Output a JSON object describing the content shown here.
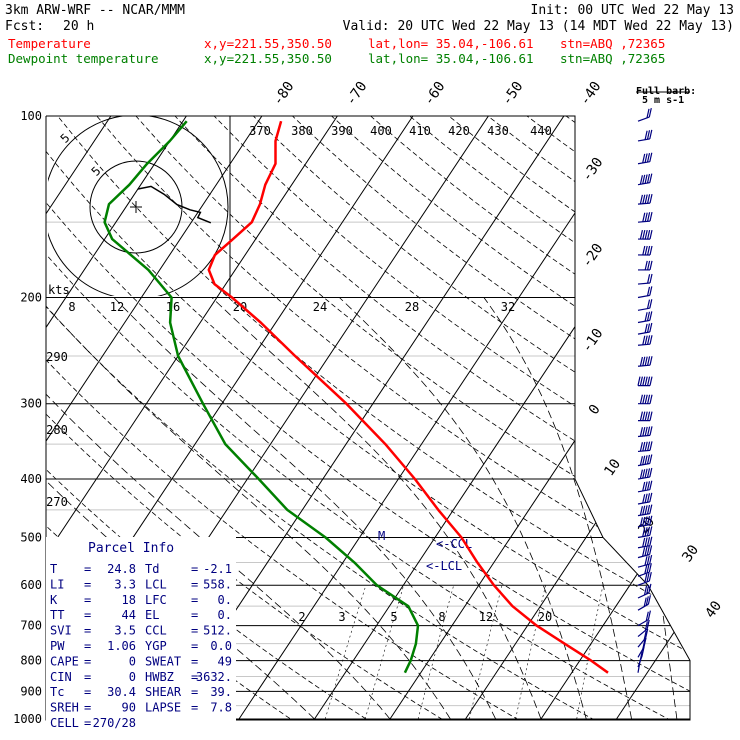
{
  "header": {
    "model": "3km ARW-WRF -- NCAR/MMM",
    "init": "Init: 00 UTC Wed 22 May 13",
    "fcst_label": "Fcst:",
    "fcst_hours": "20 h",
    "valid": "Valid: 20 UTC Wed 22 May 13 (14 MDT Wed 22 May 13)",
    "line_temp": {
      "name": "Temperature",
      "xy": "x,y=221.55,350.50",
      "latlon": "lat,lon= 35.04,-106.61",
      "stn": "stn=ABQ ,72365"
    },
    "line_dew": {
      "name": "Dewpoint temperature",
      "xy": "x,y=221.55,350.50",
      "latlon": "lat,lon= 35.04,-106.61",
      "stn": "stn=ABQ ,72365"
    }
  },
  "colors": {
    "temperature": "#ff0000",
    "dewpoint": "#008000",
    "axes": "#000000",
    "barbs": "#000080",
    "legend_text": "#000080"
  },
  "barb_legend": {
    "title": "Full barb:",
    "value": "5 m s-1"
  },
  "hodograph": {
    "units": "kts",
    "ring_labels": [
      "5",
      "5"
    ],
    "trace": [
      [
        0,
        0
      ],
      [
        -5,
        1
      ],
      [
        -10,
        -2
      ],
      [
        -15,
        -6
      ],
      [
        -20,
        -8
      ],
      [
        -24,
        -9
      ],
      [
        -23,
        -11
      ],
      [
        -28,
        -13
      ]
    ]
  },
  "indices": {
    "title": "Parcel Info",
    "rows": [
      [
        [
          "T",
          "=",
          "24.8"
        ],
        [
          "Td",
          "=",
          "-2.1"
        ]
      ],
      [
        [
          "LI",
          "=",
          "3.3"
        ],
        [
          "LCL",
          "=",
          "558."
        ]
      ],
      [
        [
          "K",
          "=",
          "18"
        ],
        [
          "LFC",
          "=",
          "0."
        ]
      ],
      [
        [
          "TT",
          "=",
          "44"
        ],
        [
          "EL",
          "=",
          "0."
        ]
      ],
      [
        [
          "SVI",
          "=",
          "3.5"
        ],
        [
          "CCL",
          "=",
          "512."
        ]
      ],
      [
        [
          "PW",
          "=",
          "1.06"
        ],
        [
          "YGP",
          "=",
          "0.0"
        ]
      ],
      [
        [
          "CAPE",
          "=",
          "0"
        ],
        [
          "SWEAT",
          "=",
          "49"
        ]
      ],
      [
        [
          "CIN",
          "=",
          "0"
        ],
        [
          "HWBZ",
          "=",
          "3632."
        ]
      ],
      [
        [
          "Tc",
          "=",
          "30.4"
        ],
        [
          "SHEAR",
          "=",
          "39."
        ]
      ],
      [
        [
          "SREH",
          "=",
          "90"
        ],
        [
          "LAPSE",
          "=",
          "7.8"
        ]
      ],
      [
        [
          "CELL",
          "=",
          "270/28"
        ]
      ]
    ]
  },
  "chart_data": {
    "type": "line",
    "diagram": "skew-T log-p",
    "y_axis": {
      "scale": "log",
      "ylim": [
        1000,
        100
      ],
      "ticks": [
        100,
        200,
        300,
        400,
        500,
        600,
        700,
        800,
        900,
        1000
      ]
    },
    "isotherm_labels": [
      "-80",
      "-70",
      "-60",
      "-50",
      "-40",
      "-30",
      "-20",
      "-10",
      "0",
      "10",
      "20",
      "30",
      "40"
    ],
    "theta_labels": [
      "270",
      "280",
      "290",
      "370",
      "380",
      "390",
      "400",
      "410",
      "420",
      "430",
      "440"
    ],
    "mixing_ratio_labels": [
      "2",
      "3",
      "5",
      "8",
      "12",
      "20"
    ],
    "hodo_speed_labels": [
      "8",
      "12",
      "16",
      "20",
      "24",
      "28",
      "32"
    ],
    "annotations": [
      "M",
      "<-CCL",
      "<-LCL"
    ],
    "series": [
      {
        "name": "Temperature",
        "color": "#ff0000",
        "p": [
          838,
          800,
          750,
          700,
          650,
          600,
          550,
          500,
          450,
          400,
          350,
          300,
          250,
          220,
          200,
          190,
          180,
          170,
          160,
          150,
          140,
          130,
          120,
          110,
          102
        ],
        "t": [
          24.8,
          21.5,
          16.5,
          11.2,
          6.3,
          2.0,
          -2.2,
          -6.5,
          -12.0,
          -17.8,
          -24.8,
          -33.5,
          -44.5,
          -52.0,
          -58.0,
          -61.5,
          -63.5,
          -64.0,
          -63.0,
          -62.0,
          -62.5,
          -63.5,
          -64.0,
          -66.0,
          -67.0
        ]
      },
      {
        "name": "Dewpoint temperature",
        "color": "#008000",
        "p": [
          838,
          800,
          750,
          700,
          650,
          600,
          550,
          500,
          450,
          400,
          350,
          300,
          250,
          220,
          200,
          180,
          160,
          150,
          140,
          130,
          120,
          110,
          102
        ],
        "t": [
          -2.1,
          -2.4,
          -3.2,
          -4.5,
          -7.5,
          -13.5,
          -18.5,
          -24.5,
          -32.0,
          -38.5,
          -46.0,
          -52.5,
          -60.0,
          -64.0,
          -66.0,
          -71.5,
          -79.0,
          -81.5,
          -82.5,
          -81.5,
          -81.0,
          -80.0,
          -79.5
        ]
      }
    ],
    "wind": {
      "p": [
        102,
        110,
        120,
        130,
        140,
        150,
        160,
        170,
        180,
        190,
        200,
        210,
        220,
        230,
        240,
        260,
        280,
        300,
        320,
        340,
        360,
        380,
        400,
        420,
        440,
        460,
        480,
        500,
        520,
        540,
        560,
        580,
        600,
        630,
        660,
        700,
        730,
        760,
        790,
        820,
        838
      ],
      "spd": [
        10,
        15,
        20,
        25,
        25,
        20,
        25,
        20,
        15,
        10,
        10,
        10,
        15,
        15,
        20,
        25,
        30,
        25,
        25,
        25,
        25,
        25,
        25,
        20,
        20,
        25,
        25,
        20,
        20,
        20,
        15,
        15,
        15,
        15,
        15,
        10,
        10,
        10,
        10,
        10,
        5
      ],
      "dir": [
        250,
        260,
        260,
        260,
        265,
        265,
        270,
        270,
        270,
        265,
        260,
        260,
        260,
        260,
        265,
        265,
        270,
        270,
        270,
        265,
        265,
        260,
        260,
        260,
        260,
        260,
        260,
        260,
        260,
        255,
        255,
        250,
        250,
        245,
        240,
        240,
        230,
        220,
        210,
        200,
        190
      ]
    }
  }
}
